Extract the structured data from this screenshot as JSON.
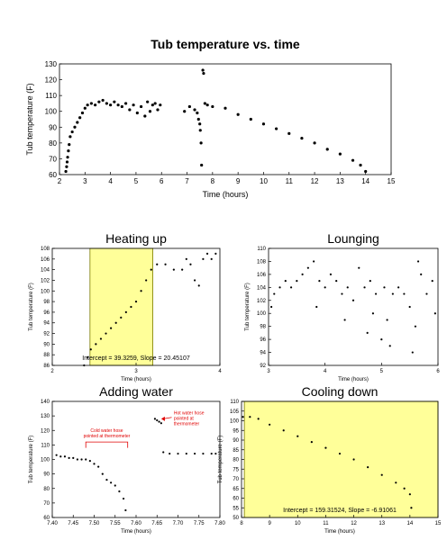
{
  "chart_data": [
    {
      "id": "main",
      "type": "scatter",
      "title": "Tub temperature vs. time",
      "xlabel": "Time (hours)",
      "ylabel": "Tub temperature (F)",
      "xlim": [
        2,
        15
      ],
      "ylim": [
        60,
        130
      ],
      "xticks": [
        2,
        3,
        4,
        5,
        6,
        7,
        8,
        9,
        10,
        11,
        12,
        13,
        14,
        15
      ],
      "yticks": [
        60,
        70,
        80,
        90,
        100,
        110,
        120,
        130
      ],
      "grid": false,
      "series": [
        {
          "points": [
            [
              2.25,
              62
            ],
            [
              2.28,
              65
            ],
            [
              2.3,
              68
            ],
            [
              2.32,
              71
            ],
            [
              2.35,
              75
            ],
            [
              2.38,
              79
            ],
            [
              2.42,
              84
            ],
            [
              2.5,
              87
            ],
            [
              2.6,
              90
            ],
            [
              2.7,
              93
            ],
            [
              2.8,
              96
            ],
            [
              2.9,
              99
            ],
            [
              3.0,
              102
            ],
            [
              3.1,
              104
            ],
            [
              3.25,
              105
            ],
            [
              3.4,
              104
            ],
            [
              3.55,
              106
            ],
            [
              3.7,
              107
            ],
            [
              3.85,
              105
            ],
            [
              4.0,
              104
            ],
            [
              4.15,
              106
            ],
            [
              4.3,
              104
            ],
            [
              4.45,
              103
            ],
            [
              4.6,
              105
            ],
            [
              4.75,
              101
            ],
            [
              4.9,
              104
            ],
            [
              5.05,
              99
            ],
            [
              5.2,
              103
            ],
            [
              5.35,
              97
            ],
            [
              5.45,
              106
            ],
            [
              5.55,
              100
            ],
            [
              5.65,
              104
            ],
            [
              5.75,
              105
            ],
            [
              5.85,
              101
            ],
            [
              5.95,
              104
            ],
            [
              6.9,
              100
            ],
            [
              7.1,
              103
            ],
            [
              7.3,
              101
            ],
            [
              7.4,
              99
            ],
            [
              7.45,
              95
            ],
            [
              7.5,
              92
            ],
            [
              7.52,
              88
            ],
            [
              7.55,
              80
            ],
            [
              7.57,
              66
            ],
            [
              7.62,
              126
            ],
            [
              7.65,
              124
            ],
            [
              7.7,
              105
            ],
            [
              7.8,
              104
            ],
            [
              8.0,
              103
            ],
            [
              8.5,
              102
            ],
            [
              9.0,
              98
            ],
            [
              9.5,
              95
            ],
            [
              10.0,
              92
            ],
            [
              10.5,
              89
            ],
            [
              11.0,
              86
            ],
            [
              11.5,
              83
            ],
            [
              12.0,
              80
            ],
            [
              12.5,
              76
            ],
            [
              13.0,
              73
            ],
            [
              13.5,
              69
            ],
            [
              13.8,
              66
            ],
            [
              14.0,
              62
            ]
          ]
        }
      ]
    },
    {
      "id": "heating",
      "type": "scatter",
      "title": "Heating up",
      "xlabel": "Time (hours)",
      "ylabel": "Tub temperature (F)",
      "xlim": [
        2,
        4
      ],
      "ylim": [
        86,
        108
      ],
      "xticks": [
        2,
        3,
        4
      ],
      "yticks": [
        86,
        88,
        90,
        92,
        94,
        96,
        98,
        100,
        102,
        104,
        106,
        108
      ],
      "grid": false,
      "highlight": {
        "x_from": 2.45,
        "x_to": 3.2
      },
      "annotation": "Intercept = 39.3259, Slope = 20.45107",
      "series": [
        {
          "points": [
            [
              2.38,
              86
            ],
            [
              2.42,
              87.5
            ],
            [
              2.46,
              89
            ],
            [
              2.52,
              90
            ],
            [
              2.58,
              91
            ],
            [
              2.64,
              92
            ],
            [
              2.7,
              93
            ],
            [
              2.76,
              94
            ],
            [
              2.82,
              95
            ],
            [
              2.88,
              96
            ],
            [
              2.94,
              97
            ],
            [
              3.0,
              98
            ],
            [
              3.06,
              100
            ],
            [
              3.12,
              102
            ],
            [
              3.18,
              104
            ],
            [
              3.25,
              105
            ],
            [
              3.35,
              105
            ],
            [
              3.45,
              104
            ],
            [
              3.55,
              104
            ],
            [
              3.6,
              106
            ],
            [
              3.65,
              105
            ],
            [
              3.7,
              102
            ],
            [
              3.75,
              101
            ],
            [
              3.8,
              106
            ],
            [
              3.85,
              107
            ],
            [
              3.9,
              106
            ],
            [
              3.95,
              107
            ]
          ]
        }
      ]
    },
    {
      "id": "lounging",
      "type": "scatter",
      "title": "Lounging",
      "xlabel": "Time (hours)",
      "ylabel": "Tub temperature (F)",
      "xlim": [
        3,
        6
      ],
      "ylim": [
        92,
        110
      ],
      "xticks": [
        3,
        4,
        5,
        6
      ],
      "yticks": [
        92,
        94,
        96,
        98,
        100,
        102,
        104,
        106,
        108,
        110
      ],
      "grid": false,
      "series": [
        {
          "points": [
            [
              3.05,
              101
            ],
            [
              3.1,
              103
            ],
            [
              3.2,
              104
            ],
            [
              3.3,
              105
            ],
            [
              3.4,
              104
            ],
            [
              3.5,
              105
            ],
            [
              3.6,
              106
            ],
            [
              3.7,
              107
            ],
            [
              3.8,
              108
            ],
            [
              3.85,
              101
            ],
            [
              3.9,
              105
            ],
            [
              4.0,
              104
            ],
            [
              4.1,
              106
            ],
            [
              4.2,
              105
            ],
            [
              4.3,
              103
            ],
            [
              4.35,
              99
            ],
            [
              4.4,
              104
            ],
            [
              4.5,
              102
            ],
            [
              4.6,
              107
            ],
            [
              4.7,
              104
            ],
            [
              4.75,
              97
            ],
            [
              4.8,
              105
            ],
            [
              4.85,
              100
            ],
            [
              4.9,
              103
            ],
            [
              5.0,
              96
            ],
            [
              5.05,
              104
            ],
            [
              5.1,
              99
            ],
            [
              5.15,
              95
            ],
            [
              5.2,
              103
            ],
            [
              5.3,
              104
            ],
            [
              5.4,
              103
            ],
            [
              5.5,
              101
            ],
            [
              5.55,
              94
            ],
            [
              5.6,
              98
            ],
            [
              5.65,
              108
            ],
            [
              5.7,
              106
            ],
            [
              5.8,
              103
            ],
            [
              5.9,
              105
            ],
            [
              5.95,
              100
            ]
          ]
        }
      ]
    },
    {
      "id": "adding",
      "type": "scatter",
      "title": "Adding water",
      "xlabel": "Time (hours)",
      "ylabel": "Tub temperature (F)",
      "xlim": [
        7.4,
        7.8
      ],
      "ylim": [
        60,
        140
      ],
      "xticks": [
        7.4,
        7.45,
        7.5,
        7.55,
        7.6,
        7.65,
        7.7,
        7.75,
        7.8
      ],
      "xtick_labels": [
        "7.40",
        "7.45",
        "7.50",
        "7.55",
        "7.60",
        "7.65",
        "7.70",
        "7.75",
        "7.80"
      ],
      "yticks": [
        60,
        70,
        80,
        90,
        100,
        110,
        120,
        130,
        140
      ],
      "grid": false,
      "annotations": [
        {
          "lines": [
            "Cold water hose",
            "pointed at thermometer"
          ],
          "at": [
            7.53,
            114
          ]
        },
        {
          "lines": [
            "Hot water hose",
            "pointed at",
            "thermometer"
          ],
          "at": [
            7.69,
            131
          ]
        }
      ],
      "series": [
        {
          "points": [
            [
              7.41,
              103
            ],
            [
              7.42,
              102
            ],
            [
              7.43,
              102
            ],
            [
              7.44,
              101
            ],
            [
              7.45,
              101
            ],
            [
              7.46,
              100
            ],
            [
              7.47,
              100
            ],
            [
              7.48,
              100
            ],
            [
              7.49,
              99
            ],
            [
              7.5,
              97
            ],
            [
              7.51,
              95
            ],
            [
              7.52,
              90
            ],
            [
              7.53,
              86
            ],
            [
              7.54,
              84
            ],
            [
              7.55,
              82
            ],
            [
              7.56,
              78
            ],
            [
              7.57,
              73
            ],
            [
              7.575,
              65
            ],
            [
              7.645,
              128
            ],
            [
              7.65,
              127
            ],
            [
              7.655,
              126
            ],
            [
              7.66,
              125
            ],
            [
              7.665,
              105
            ],
            [
              7.68,
              104
            ],
            [
              7.7,
              104
            ],
            [
              7.72,
              104
            ],
            [
              7.74,
              104
            ],
            [
              7.76,
              104
            ],
            [
              7.78,
              104
            ],
            [
              7.79,
              104
            ]
          ]
        }
      ]
    },
    {
      "id": "cooling",
      "type": "scatter",
      "title": "Cooling down",
      "xlabel": "Time (hours)",
      "ylabel": "Tub temperature (F)",
      "xlim": [
        8,
        15
      ],
      "ylim": [
        50,
        110
      ],
      "xticks": [
        8,
        9,
        10,
        11,
        12,
        13,
        14,
        15
      ],
      "yticks": [
        50,
        55,
        60,
        65,
        70,
        75,
        80,
        85,
        90,
        95,
        100,
        105,
        110
      ],
      "grid": false,
      "highlight": {
        "x_from": 8.1,
        "x_to": 15
      },
      "annotation": "Intercept = 159.31524, Slope = -6.91061",
      "series": [
        {
          "points": [
            [
              8.05,
              102
            ],
            [
              8.3,
              102
            ],
            [
              8.6,
              101
            ],
            [
              9.0,
              98
            ],
            [
              9.5,
              95
            ],
            [
              10.0,
              92
            ],
            [
              10.5,
              89
            ],
            [
              11.0,
              86
            ],
            [
              11.5,
              83
            ],
            [
              12.0,
              80
            ],
            [
              12.5,
              76
            ],
            [
              13.0,
              72
            ],
            [
              13.5,
              68
            ],
            [
              13.8,
              65
            ],
            [
              14.0,
              62
            ],
            [
              14.05,
              55
            ]
          ]
        }
      ]
    }
  ]
}
